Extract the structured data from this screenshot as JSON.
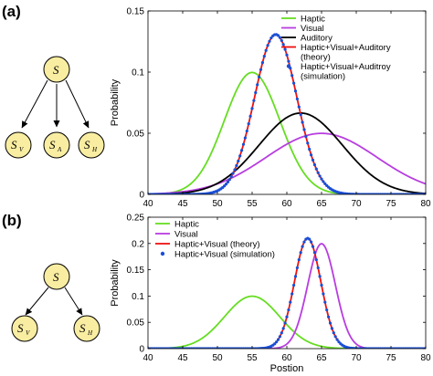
{
  "panels": [
    {
      "label": "(a)",
      "graph": {
        "root": "S",
        "children": [
          {
            "letter": "S",
            "sub": "V"
          },
          {
            "letter": "S",
            "sub": "A"
          },
          {
            "letter": "S",
            "sub": "H"
          }
        ]
      }
    },
    {
      "label": "(b)",
      "graph": {
        "root": "S",
        "children": [
          {
            "letter": "S",
            "sub": "V"
          },
          {
            "letter": "S",
            "sub": "H"
          }
        ]
      }
    }
  ],
  "chart_data": [
    {
      "type": "line",
      "xlabel": "",
      "ylabel": "Probability",
      "xlim": [
        40,
        80
      ],
      "ylim": [
        0,
        0.15
      ],
      "xticks": [
        40,
        45,
        50,
        55,
        60,
        65,
        70,
        75,
        80
      ],
      "yticks": [
        0,
        0.05,
        0.1,
        0.15
      ],
      "ytick_labels": [
        "0",
        "0.05",
        "0.1",
        "0.15"
      ],
      "legend_position": "top-right",
      "series": [
        {
          "name": "Haptic",
          "color": "#66dd22",
          "kind": "line",
          "mean": 55,
          "sd": 4,
          "peak": 0.0997
        },
        {
          "name": "Visual",
          "color": "#b83de0",
          "kind": "line",
          "mean": 65,
          "sd": 8,
          "peak": 0.0499
        },
        {
          "name": "Auditory",
          "color": "#000000",
          "kind": "line",
          "mean": 62,
          "sd": 6,
          "peak": 0.0665
        },
        {
          "name": "Haptic+Visual+Auditory (theory)",
          "color": "#ee1111",
          "kind": "line",
          "mean": 58.4,
          "sd": 3.05,
          "peak": 0.1308
        },
        {
          "name": "Haptic+Visual+Auditroy (simulation)",
          "color": "#1a4fd6",
          "kind": "markers",
          "mean": 58.4,
          "sd": 3.05,
          "peak": 0.1308
        }
      ]
    },
    {
      "type": "line",
      "xlabel": "Postion",
      "ylabel": "Probability",
      "xlim": [
        40,
        80
      ],
      "ylim": [
        0,
        0.25
      ],
      "xticks": [
        40,
        45,
        50,
        55,
        60,
        65,
        70,
        75,
        80
      ],
      "yticks": [
        0,
        0.05,
        0.1,
        0.15,
        0.2,
        0.25
      ],
      "ytick_labels": [
        "0",
        "0.05",
        "0.1",
        "0.15",
        "0.2",
        "0.25"
      ],
      "legend_position": "top-left",
      "series": [
        {
          "name": "Haptic",
          "color": "#66dd22",
          "kind": "line",
          "mean": 55,
          "sd": 4,
          "peak": 0.0997
        },
        {
          "name": "Visual",
          "color": "#b83de0",
          "kind": "line",
          "mean": 65,
          "sd": 2,
          "peak": 0.1995
        },
        {
          "name": "Haptic+Visual (theory)",
          "color": "#ee1111",
          "kind": "line",
          "mean": 63,
          "sd": 1.9,
          "peak": 0.21
        },
        {
          "name": "Haptic+Visual (simulation)",
          "color": "#1a4fd6",
          "kind": "markers",
          "mean": 63,
          "sd": 1.9,
          "peak": 0.21
        }
      ]
    }
  ]
}
